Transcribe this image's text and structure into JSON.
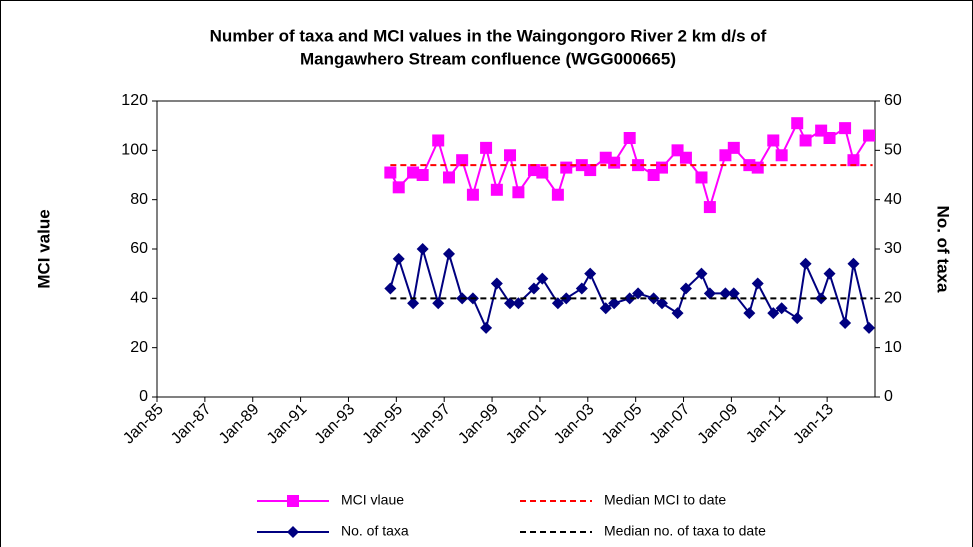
{
  "chart_data": {
    "type": "line",
    "title": [
      "Number of taxa and MCI values in the Waingongoro River 2 km d/s of",
      "Mangawhero Stream confluence (WGG000665)"
    ],
    "y_label": "MCI value",
    "y2_label": "No. of taxa",
    "xlim": [
      1985,
      2015
    ],
    "xticks": [
      {
        "value": 1985,
        "label": "Jan-85"
      },
      {
        "value": 1987,
        "label": "Jan-87"
      },
      {
        "value": 1989,
        "label": "Jan-89"
      },
      {
        "value": 1991,
        "label": "Jan-91"
      },
      {
        "value": 1993,
        "label": "Jan-93"
      },
      {
        "value": 1995,
        "label": "Jan-95"
      },
      {
        "value": 1997,
        "label": "Jan-97"
      },
      {
        "value": 1999,
        "label": "Jan-99"
      },
      {
        "value": 2001,
        "label": "Jan-01"
      },
      {
        "value": 2003,
        "label": "Jan-03"
      },
      {
        "value": 2005,
        "label": "Jan-05"
      },
      {
        "value": 2007,
        "label": "Jan-07"
      },
      {
        "value": 2009,
        "label": "Jan-09"
      },
      {
        "value": 2011,
        "label": "Jan-11"
      },
      {
        "value": 2013,
        "label": "Jan-13"
      }
    ],
    "ylim": [
      0,
      120
    ],
    "yticks": [
      0,
      20,
      40,
      60,
      80,
      100,
      120
    ],
    "y2lim": [
      0,
      60
    ],
    "y2ticks": [
      0,
      10,
      20,
      30,
      40,
      50,
      60
    ],
    "series": [
      {
        "name": "MCI vlaue",
        "color": "#ff00ff",
        "marker": "square",
        "style": "solid",
        "x": [
          1994.75,
          1995.1,
          1995.7,
          1996.1,
          1996.75,
          1997.2,
          1997.75,
          1998.2,
          1998.75,
          1999.2,
          1999.75,
          2000.1,
          2000.75,
          2001.1,
          2001.75,
          2002.1,
          2002.75,
          2003.1,
          2003.75,
          2004.1,
          2004.75,
          2005.1,
          2005.75,
          2006.1,
          2006.75,
          2007.1,
          2007.75,
          2008.1,
          2008.75,
          2009.1,
          2009.75,
          2010.1,
          2010.75,
          2011.1,
          2011.75,
          2012.1,
          2012.75,
          2013.1,
          2013.75,
          2014.1,
          2014.75
        ],
        "values": [
          91,
          85,
          91,
          90,
          104,
          89,
          96,
          82,
          101,
          84,
          98,
          83,
          92,
          91,
          82,
          93,
          94,
          92,
          97,
          95,
          105,
          94,
          90,
          93,
          100,
          97,
          89,
          77,
          98,
          101,
          94,
          93,
          104,
          98,
          111,
          104,
          108,
          105,
          109,
          96,
          106
        ]
      },
      {
        "name": "Median MCI to date",
        "color": "#ff0000",
        "marker": "none",
        "style": "dashed",
        "x": [
          1994.75,
          2014.9
        ],
        "values": [
          94,
          94
        ]
      },
      {
        "name": "No. of taxa",
        "color": "#000080",
        "marker": "diamond",
        "style": "solid",
        "axis": "y2",
        "x": [
          1994.75,
          1995.1,
          1995.7,
          1996.1,
          1996.75,
          1997.2,
          1997.75,
          1998.2,
          1998.75,
          1999.2,
          1999.75,
          2000.1,
          2000.75,
          2001.1,
          2001.75,
          2002.1,
          2002.75,
          2003.1,
          2003.75,
          2004.1,
          2004.75,
          2005.1,
          2005.75,
          2006.1,
          2006.75,
          2007.1,
          2007.75,
          2008.1,
          2008.75,
          2009.1,
          2009.75,
          2010.1,
          2010.75,
          2011.1,
          2011.75,
          2012.1,
          2012.75,
          2013.1,
          2013.75,
          2014.1,
          2014.75
        ],
        "values": [
          22,
          28,
          19,
          30,
          19,
          29,
          20,
          20,
          14,
          23,
          19,
          19,
          22,
          24,
          19,
          20,
          22,
          25,
          18,
          19,
          20,
          21,
          20,
          19,
          17,
          22,
          25,
          21,
          21,
          21,
          17,
          23,
          17,
          18,
          16,
          27,
          20,
          25,
          15,
          27,
          14
        ]
      },
      {
        "name": "Median no. of taxa to date",
        "color": "#000000",
        "marker": "none",
        "style": "dashed",
        "axis": "y2",
        "x": [
          1994.75,
          2014.9
        ],
        "values": [
          20,
          20
        ]
      }
    ]
  }
}
